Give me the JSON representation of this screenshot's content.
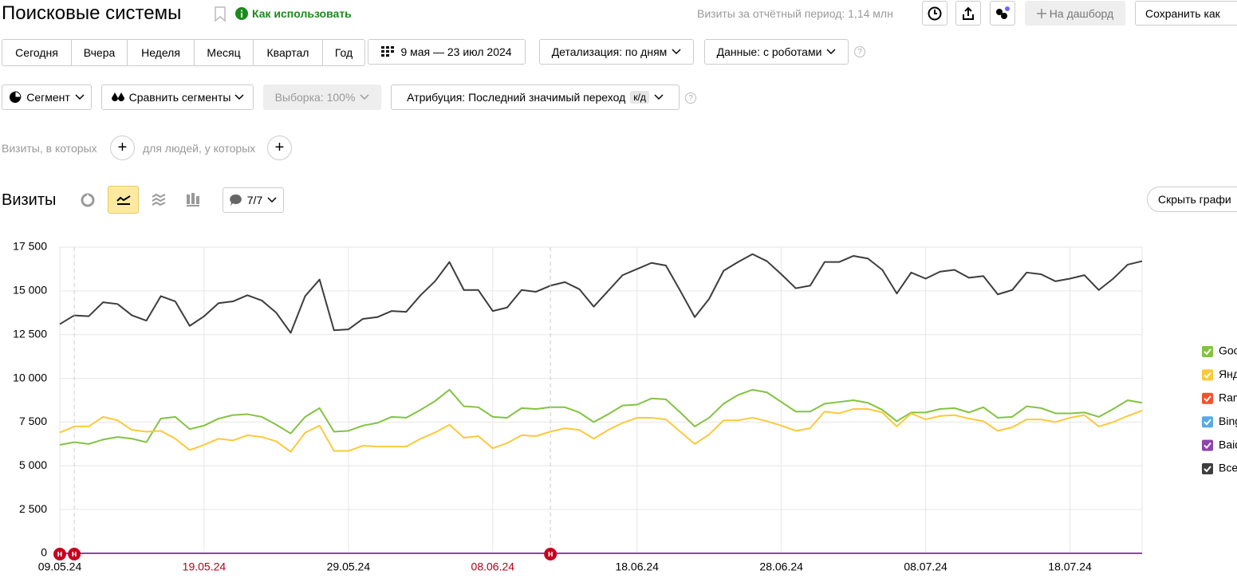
{
  "header": {
    "title": "Поисковые системы",
    "help_link": "Как использовать",
    "visits_summary": "Визиты за отчётный период: 1,14 млн",
    "dashboard_button": "На дашборд",
    "save_button": "Сохранить как"
  },
  "toolbar": {
    "periods": [
      "Сегодня",
      "Вчера",
      "Неделя",
      "Месяц",
      "Квартал",
      "Год"
    ],
    "date_range": "9 мая — 23 июл 2024",
    "detail": "Детализация: по дням",
    "data_mode": "Данные: с роботами",
    "help": "?"
  },
  "filters": {
    "segment": "Сегмент",
    "compare": "Сравнить сегменты",
    "sample": "Выборка: 100%",
    "attribution": "Атрибуция: Последний значимый переход",
    "attribution_badge": "к/д",
    "help": "?"
  },
  "conditions": {
    "visits": "Визиты, в которых",
    "people": "для людей, у которых"
  },
  "chart_header": {
    "title": "Визиты",
    "annotations_count": "7/7",
    "hide_button": "Скрыть графи"
  },
  "chart_data": {
    "type": "line",
    "categories": [
      "09.05.24",
      "10.05.24",
      "11.05.24",
      "12.05.24",
      "13.05.24",
      "14.05.24",
      "15.05.24",
      "16.05.24",
      "17.05.24",
      "18.05.24",
      "19.05.24",
      "20.05.24",
      "21.05.24",
      "22.05.24",
      "23.05.24",
      "24.05.24",
      "25.05.24",
      "26.05.24",
      "27.05.24",
      "28.05.24",
      "29.05.24",
      "30.05.24",
      "31.05.24",
      "01.06.24",
      "02.06.24",
      "03.06.24",
      "04.06.24",
      "05.06.24",
      "06.06.24",
      "07.06.24",
      "08.06.24",
      "09.06.24",
      "10.06.24",
      "11.06.24",
      "12.06.24",
      "13.06.24",
      "14.06.24",
      "15.06.24",
      "16.06.24",
      "17.06.24",
      "18.06.24",
      "19.06.24",
      "20.06.24",
      "21.06.24",
      "22.06.24",
      "23.06.24",
      "24.06.24",
      "25.06.24",
      "26.06.24",
      "27.06.24",
      "28.06.24",
      "29.06.24",
      "30.06.24",
      "01.07.24",
      "02.07.24",
      "03.07.24",
      "04.07.24",
      "05.07.24",
      "06.07.24",
      "07.07.24",
      "08.07.24",
      "09.07.24",
      "10.07.24",
      "11.07.24",
      "12.07.24",
      "13.07.24",
      "14.07.24",
      "15.07.24",
      "16.07.24",
      "17.07.24",
      "18.07.24",
      "19.07.24",
      "20.07.24",
      "21.07.24",
      "22.07.24",
      "23.07.24"
    ],
    "xticks": [
      "09.05.24",
      "19.05.24",
      "29.05.24",
      "08.06.24",
      "18.06.24",
      "28.06.24",
      "08.07.24",
      "18.07.24"
    ],
    "weekend_color": "#b3001b",
    "ylim": [
      0,
      17500
    ],
    "yticks": [
      0,
      {
        "value": 2500,
        "label": "2 500"
      },
      {
        "value": 5000,
        "label": "5 000"
      },
      {
        "value": 7500,
        "label": "7 500"
      },
      {
        "value": 10000,
        "label": "10 000"
      },
      {
        "value": 12500,
        "label": "12 500"
      },
      {
        "value": 15000,
        "label": "15 000"
      },
      {
        "value": 17500,
        "label": "17 500"
      }
    ],
    "grid": true,
    "legend": "right",
    "annotations": [
      {
        "x": "09.05.24",
        "label": "н"
      },
      {
        "x": "10.05.24",
        "label": "н"
      },
      {
        "x": "12.06.24",
        "label": "н"
      }
    ],
    "series": [
      {
        "name": "Goo",
        "color": "#83c341",
        "values": [
          6200,
          6350,
          6250,
          6500,
          6650,
          6550,
          6350,
          7700,
          7800,
          7100,
          7300,
          7700,
          7900,
          7950,
          7800,
          7350,
          6850,
          7800,
          8300,
          6950,
          7000,
          7300,
          7450,
          7800,
          7750,
          8200,
          8700,
          9350,
          8400,
          8350,
          7800,
          7750,
          8300,
          8250,
          8350,
          8350,
          8050,
          7500,
          7950,
          8450,
          8500,
          8850,
          8800,
          8050,
          7250,
          7750,
          8550,
          9050,
          9350,
          9200,
          8650,
          8100,
          8100,
          8550,
          8650,
          8750,
          8600,
          8200,
          7550,
          8050,
          8050,
          8250,
          8300,
          8050,
          8350,
          7750,
          7800,
          8400,
          8300,
          8000,
          8000,
          8050,
          7800,
          8250,
          8750,
          8600
        ]
      },
      {
        "name": "Янд",
        "color": "#fcc93a",
        "values": [
          6900,
          7250,
          7250,
          7800,
          7600,
          7050,
          6950,
          7000,
          6550,
          5900,
          6200,
          6550,
          6450,
          6750,
          6650,
          6400,
          5800,
          6900,
          7300,
          5850,
          5850,
          6150,
          6100,
          6100,
          6100,
          6550,
          6900,
          7350,
          6600,
          6700,
          6000,
          6300,
          6750,
          6700,
          6950,
          7150,
          7050,
          6550,
          7050,
          7450,
          7750,
          7750,
          7650,
          6950,
          6250,
          6800,
          7600,
          7600,
          7750,
          7550,
          7300,
          7000,
          7150,
          8100,
          8000,
          8250,
          8250,
          8050,
          7250,
          8000,
          7650,
          7850,
          7900,
          7700,
          7550,
          7000,
          7200,
          7650,
          7650,
          7500,
          7750,
          7900,
          7250,
          7500,
          7850,
          8150
        ]
      },
      {
        "name": "Ram",
        "color": "#f0522d",
        "values": [
          0,
          0,
          0,
          0,
          0,
          0,
          0,
          0,
          0,
          0,
          0,
          0,
          0,
          0,
          0,
          0,
          0,
          0,
          0,
          0,
          0,
          0,
          0,
          0,
          0,
          0,
          0,
          0,
          0,
          0,
          0,
          0,
          0,
          0,
          0,
          0,
          0,
          0,
          0,
          0,
          0,
          0,
          0,
          0,
          0,
          0,
          0,
          0,
          0,
          0,
          0,
          0,
          0,
          0,
          0,
          0,
          0,
          0,
          0,
          0,
          0,
          0,
          0,
          0,
          0,
          0,
          0,
          0,
          0,
          0,
          0,
          0,
          0,
          0,
          0,
          0
        ]
      },
      {
        "name": "Bing",
        "color": "#5aa9e6",
        "values": [
          0,
          0,
          0,
          0,
          0,
          0,
          0,
          0,
          0,
          0,
          0,
          0,
          0,
          0,
          0,
          0,
          0,
          0,
          0,
          0,
          0,
          0,
          0,
          0,
          0,
          0,
          0,
          0,
          0,
          0,
          0,
          0,
          0,
          0,
          0,
          0,
          0,
          0,
          0,
          0,
          0,
          0,
          0,
          0,
          0,
          0,
          0,
          0,
          0,
          0,
          0,
          0,
          0,
          0,
          0,
          0,
          0,
          0,
          0,
          0,
          0,
          0,
          0,
          0,
          0,
          0,
          0,
          0,
          0,
          0,
          0,
          0,
          0,
          0,
          0,
          0
        ]
      },
      {
        "name": "Baid",
        "color": "#8e44ad",
        "values": [
          0,
          0,
          0,
          0,
          0,
          0,
          0,
          0,
          0,
          0,
          0,
          0,
          0,
          0,
          0,
          0,
          0,
          0,
          0,
          0,
          0,
          0,
          0,
          0,
          0,
          0,
          0,
          0,
          0,
          0,
          0,
          0,
          0,
          0,
          0,
          0,
          0,
          0,
          0,
          0,
          0,
          0,
          0,
          0,
          0,
          0,
          0,
          0,
          0,
          0,
          0,
          0,
          0,
          0,
          0,
          0,
          0,
          0,
          0,
          0,
          0,
          0,
          0,
          0,
          0,
          0,
          0,
          0,
          0,
          0,
          0,
          0,
          0,
          0,
          0,
          0
        ]
      },
      {
        "name": "Все",
        "color": "#3d3d3d",
        "values": [
          13100,
          13600,
          13550,
          14350,
          14250,
          13600,
          13300,
          14700,
          14400,
          13000,
          13550,
          14300,
          14400,
          14750,
          14450,
          13750,
          12600,
          14700,
          15650,
          12750,
          12800,
          13400,
          13500,
          13850,
          13800,
          14750,
          15550,
          16650,
          15050,
          15050,
          13850,
          14050,
          15050,
          14950,
          15300,
          15500,
          15100,
          14100,
          15000,
          15900,
          16250,
          16600,
          16450,
          15000,
          13500,
          14550,
          16150,
          16650,
          17100,
          16700,
          15950,
          15150,
          15300,
          16650,
          16650,
          17000,
          16850,
          16200,
          14850,
          16050,
          15700,
          16100,
          16200,
          15750,
          15850,
          14800,
          15050,
          16050,
          15950,
          15550,
          15700,
          15900,
          15050,
          15700,
          16500,
          16700
        ]
      }
    ]
  }
}
